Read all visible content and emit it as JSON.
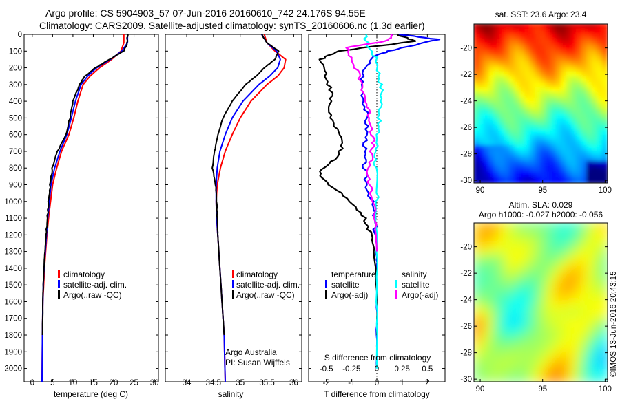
{
  "figure": {
    "title_line1": "Argo profile: CS 5904903_57 07-Jun-2016 20160610_742 24.176S 94.55E",
    "title_line2": "Climatology: CARS2009. Satellite-adjusted climatology: synTS_20160606.nc (1.3d earlier)",
    "credit": "Argo Australia",
    "pi": "PI: Susan Wijffels",
    "timestamp": "©IMOS 13-Jun-2016 20:43:15"
  },
  "colors": {
    "climatology": "#ff0000",
    "satellite": "#0000ff",
    "argo": "#000000",
    "salinity_sat": "#00ffff",
    "salinity_argo": "#ff00ff"
  },
  "chart_data": [
    {
      "type": "line",
      "id": "temperature",
      "xlabel": "temperature (deg C)",
      "ylabel": "",
      "xlim": [
        -2,
        31
      ],
      "ylim": [
        2080,
        0
      ],
      "xticks": [
        0,
        5,
        10,
        15,
        20,
        25,
        30
      ],
      "yticks": [
        0,
        100,
        200,
        300,
        400,
        500,
        600,
        700,
        800,
        900,
        1000,
        1100,
        1200,
        1300,
        1400,
        1500,
        1600,
        1700,
        1800,
        1900,
        2000
      ],
      "legend": [
        "climatology",
        "satellite-adj. clim.",
        "Argo(..raw -QC)"
      ],
      "legend_position": "lower-right",
      "series": [
        {
          "name": "climatology",
          "color": "#ff0000",
          "x": [
            22.5,
            22.5,
            21.8,
            19.5,
            16.5,
            14.2,
            12.5,
            11.2,
            10.2,
            9.0,
            7.2,
            6.0,
            5.0,
            4.5,
            4.0,
            3.6,
            3.3,
            3.0,
            2.8,
            2.6,
            2.5,
            2.4
          ],
          "y": [
            0,
            50,
            100,
            150,
            200,
            250,
            300,
            400,
            500,
            600,
            700,
            800,
            900,
            1000,
            1100,
            1200,
            1300,
            1400,
            1500,
            1600,
            1800,
            2080
          ]
        },
        {
          "name": "satellite-adj. clim.",
          "color": "#0000ff",
          "x": [
            23.4,
            23.4,
            22.0,
            19.2,
            15.8,
            13.6,
            12.0,
            10.6,
            9.6,
            8.5,
            6.8,
            5.5,
            4.6,
            4.2,
            3.8,
            3.5,
            3.2,
            2.9,
            2.7,
            2.6,
            2.5,
            2.4
          ],
          "y": [
            0,
            50,
            100,
            150,
            200,
            250,
            300,
            400,
            500,
            600,
            700,
            800,
            900,
            1000,
            1100,
            1200,
            1300,
            1400,
            1500,
            1600,
            1800,
            2080
          ]
        },
        {
          "name": "Argo(..raw -QC)",
          "color": "#000000",
          "x": [
            23.4,
            23.3,
            22.5,
            19.0,
            15.5,
            13.0,
            11.6,
            10.0,
            9.3,
            8.2,
            6.2,
            4.9,
            4.4,
            4.0,
            3.7,
            3.4,
            3.1,
            2.9,
            2.7,
            2.6,
            2.5
          ],
          "y": [
            0,
            60,
            100,
            150,
            200,
            250,
            300,
            400,
            500,
            600,
            700,
            800,
            900,
            1000,
            1100,
            1200,
            1300,
            1400,
            1500,
            1600,
            1800
          ]
        }
      ]
    },
    {
      "type": "line",
      "id": "salinity",
      "xlabel": "salinity",
      "ylabel": "",
      "xlim": [
        33.6,
        36.15
      ],
      "ylim": [
        2080,
        0
      ],
      "xticks": [
        34,
        34.5,
        35,
        35.5,
        36
      ],
      "xtick_labels": [
        "34",
        "34.5",
        "35",
        "35.5",
        "36"
      ],
      "legend": [
        "climatology",
        "satellite-adj. clim.",
        "Argo(..raw -QC)"
      ],
      "legend_position": "lower-right",
      "series": [
        {
          "name": "climatology",
          "color": "#ff0000",
          "x": [
            35.45,
            35.5,
            35.65,
            35.85,
            35.82,
            35.7,
            35.5,
            35.2,
            35.0,
            34.85,
            34.72,
            34.63,
            34.57,
            34.55,
            34.56,
            34.58,
            34.6,
            34.62,
            34.64,
            34.66,
            34.68,
            34.7,
            34.72
          ],
          "y": [
            0,
            50,
            100,
            150,
            200,
            250,
            300,
            400,
            500,
            600,
            700,
            800,
            900,
            1000,
            1100,
            1200,
            1300,
            1400,
            1500,
            1600,
            1700,
            1800,
            2080
          ]
        },
        {
          "name": "satellite-adj. clim.",
          "color": "#0000ff",
          "x": [
            35.4,
            35.5,
            35.68,
            35.75,
            35.7,
            35.55,
            35.35,
            35.05,
            34.85,
            34.72,
            34.62,
            34.57,
            34.55,
            34.55,
            34.56,
            34.58,
            34.6,
            34.62,
            34.64,
            34.66,
            34.68,
            34.7,
            34.72
          ],
          "y": [
            0,
            50,
            100,
            150,
            200,
            250,
            300,
            400,
            500,
            600,
            700,
            800,
            900,
            1000,
            1100,
            1200,
            1300,
            1400,
            1500,
            1600,
            1700,
            1800,
            2080
          ]
        },
        {
          "name": "Argo(..raw -QC)",
          "color": "#000000",
          "x": [
            35.4,
            35.5,
            35.72,
            35.65,
            35.45,
            35.3,
            35.1,
            34.85,
            34.68,
            34.58,
            34.52,
            34.48,
            34.54,
            34.56,
            34.57,
            34.58,
            34.6,
            34.62,
            34.64,
            34.66,
            34.68,
            34.7
          ],
          "y": [
            0,
            50,
            100,
            150,
            200,
            250,
            300,
            400,
            500,
            600,
            700,
            800,
            900,
            1000,
            1100,
            1200,
            1300,
            1400,
            1500,
            1600,
            1700,
            1800
          ]
        }
      ]
    },
    {
      "type": "line",
      "id": "differences",
      "xlabel": "T difference from climatology",
      "xlabel_top": "S difference from climatology",
      "xlim": [
        -2.7,
        2.7
      ],
      "ylim": [
        2080,
        0
      ],
      "xticks": [
        -2,
        -1,
        0,
        1,
        2
      ],
      "s_ticks": [
        -0.5,
        -0.25,
        0,
        0.25,
        0.5
      ],
      "s_tick_labels": [
        "-0.5",
        "-0.25",
        "0",
        "0.25",
        "0.5"
      ],
      "legend_groups": [
        {
          "title": "temperature",
          "items": [
            "satellite",
            "Argo(-adj)"
          ]
        },
        {
          "title": "salinity",
          "items": [
            "satellite",
            "Argo(-adj)"
          ]
        }
      ],
      "series": [
        {
          "name": "temperature satellite",
          "color": "#0000ff",
          "x": [
            0.9,
            2.4,
            1.0,
            0.0,
            -0.5,
            -0.6,
            -0.5,
            -0.4,
            -0.4,
            -0.5,
            -0.5,
            -0.4,
            -0.2,
            -0.1,
            -0.05,
            0.0,
            0.0,
            0.0,
            0.0,
            0.0
          ],
          "y": [
            0,
            30,
            80,
            120,
            200,
            300,
            400,
            500,
            600,
            700,
            800,
            900,
            1000,
            1100,
            1200,
            1300,
            1400,
            1600,
            1800,
            2000
          ]
        },
        {
          "name": "temperature Argo(-adj)",
          "color": "#000000",
          "x": [
            0.8,
            1.5,
            -1.5,
            -2.2,
            -2.0,
            -1.8,
            -1.9,
            -1.7,
            -1.3,
            -1.7,
            -2.3,
            -1.9,
            -1.0,
            -0.5,
            -0.2,
            -0.1,
            0.0,
            0.0
          ],
          "y": [
            0,
            40,
            100,
            150,
            250,
            350,
            450,
            550,
            650,
            750,
            820,
            900,
            1000,
            1100,
            1200,
            1300,
            1500,
            1800
          ]
        },
        {
          "name": "salinity satellite",
          "color": "#00ffff",
          "x": [
            -0.5,
            -0.3,
            0.0,
            0.1,
            0.2,
            0.15,
            0.05,
            0.0,
            -0.05,
            -0.05,
            0.0,
            0.0,
            0.0,
            0.0
          ],
          "y": [
            0,
            80,
            150,
            250,
            350,
            450,
            550,
            650,
            750,
            850,
            1000,
            1300,
            1600,
            2000
          ]
        },
        {
          "name": "salinity Argo(-adj)",
          "color": "#ff00ff",
          "x": [
            0.6,
            0.4,
            -1.2,
            -1.0,
            -0.7,
            -0.5,
            -0.35,
            -0.2,
            -0.15,
            -0.25,
            -0.4,
            -0.2,
            -0.05,
            0.0
          ],
          "y": [
            0,
            40,
            80,
            150,
            250,
            350,
            450,
            550,
            650,
            750,
            850,
            950,
            1100,
            1300
          ]
        }
      ]
    },
    {
      "type": "heatmap",
      "id": "sst-map",
      "title": "sat. SST: 23.6 Argo: 23.4",
      "xlim": [
        89.5,
        100.2
      ],
      "ylim": [
        -30.2,
        -18.2
      ],
      "xticks": [
        90,
        95,
        100
      ],
      "yticks": [
        -20,
        -22,
        -24,
        -26,
        -28,
        -30
      ],
      "colormap": "jet",
      "value_range": [
        19,
        27
      ]
    },
    {
      "type": "heatmap",
      "id": "sla-map",
      "title": "Altim. SLA: 0.029",
      "subtitle": "Argo h1000: -0.027 h2000: -0.056",
      "xlim": [
        89.5,
        100.2
      ],
      "ylim": [
        -30.2,
        -18.2
      ],
      "xticks": [
        90,
        95,
        100
      ],
      "yticks": [
        -20,
        -22,
        -24,
        -26,
        -28,
        -30
      ],
      "colormap": "jet"
    }
  ]
}
